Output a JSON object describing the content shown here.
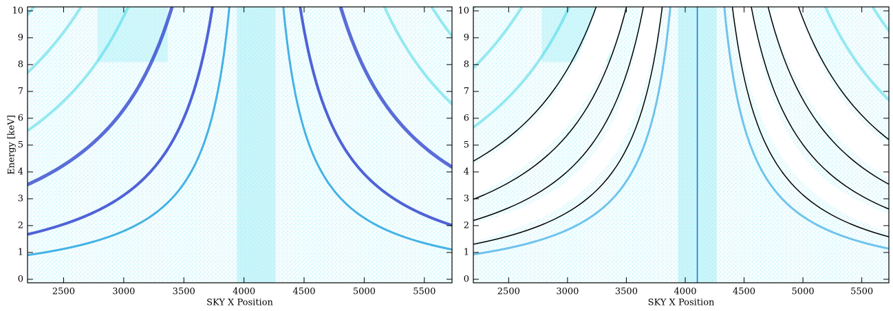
{
  "chart_data": [
    {
      "type": "image",
      "xlabel": "SKY X Position",
      "ylabel": "Energy [keV]",
      "xlim": [
        2200,
        5730
      ],
      "ylim": [
        -0.13,
        10.15
      ],
      "xticks": [
        2500,
        3000,
        3500,
        4000,
        4500,
        5000,
        5500
      ],
      "yticks": [
        0,
        1,
        2,
        3,
        4,
        5,
        6,
        7,
        8,
        9,
        10
      ]
    },
    {
      "type": "image",
      "xlabel": "SKY X Position",
      "xlim": [
        2200,
        5730
      ],
      "ylim": [
        -0.13,
        10.15
      ],
      "xticks": [
        2500,
        3000,
        3500,
        4000,
        4500,
        5000,
        5500
      ],
      "yticks": [
        0,
        1,
        2,
        3,
        4,
        5,
        6,
        7,
        8,
        9,
        10
      ]
    }
  ]
}
